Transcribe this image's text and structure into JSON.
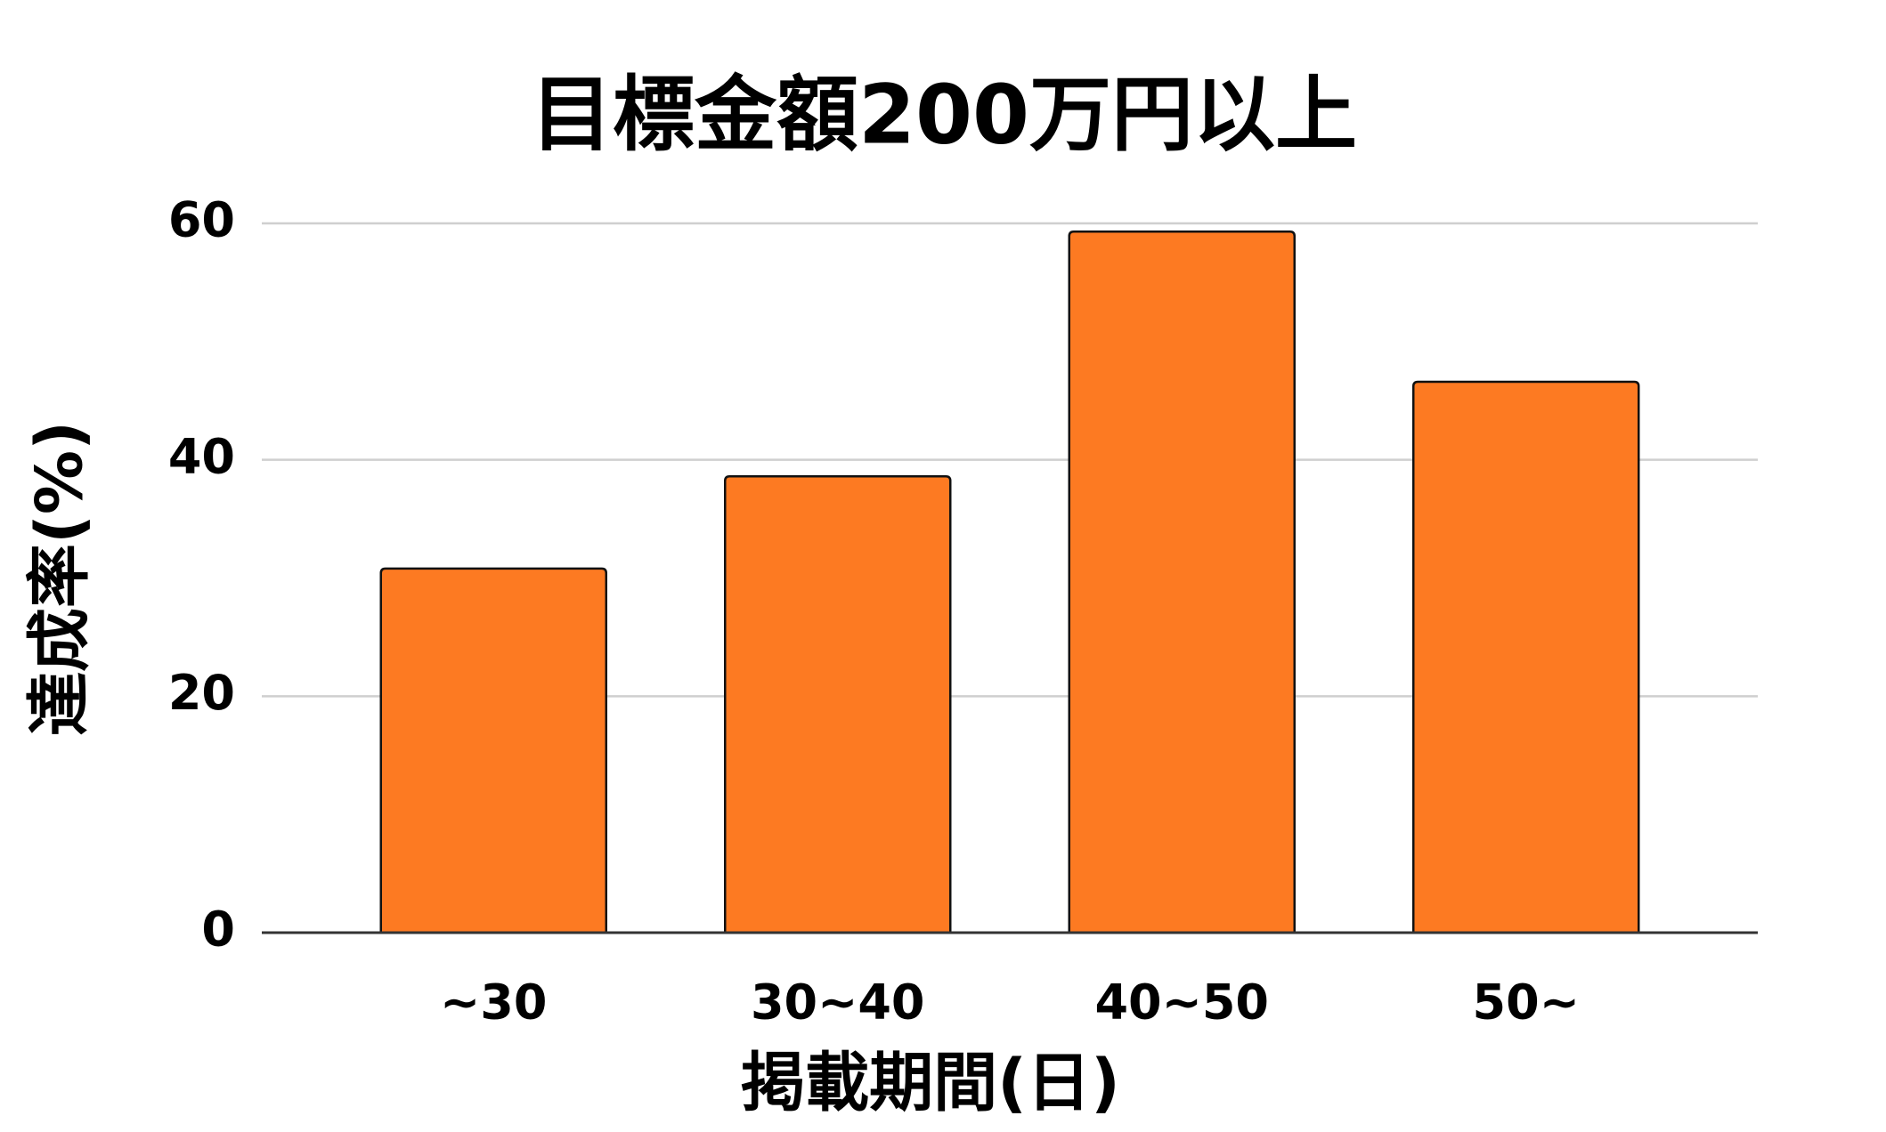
{
  "chart_data": {
    "type": "bar",
    "title": "目標金額200万円以上",
    "x_label": "掲載期間(日)",
    "y_label": "達成率(%)",
    "categories": [
      "~30",
      "30~40",
      "40~50",
      "50~"
    ],
    "values": [
      30.8,
      38.6,
      59.3,
      46.6
    ],
    "color": "#fd7a22",
    "ylim": [
      0,
      60
    ],
    "yticks": [
      0,
      20,
      40,
      60
    ],
    "grid": true
  }
}
